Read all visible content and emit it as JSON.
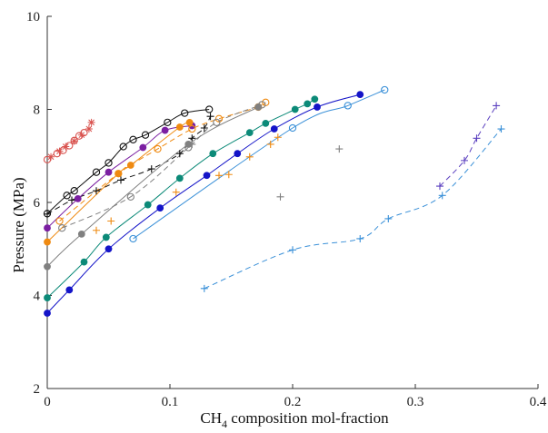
{
  "chart_data": {
    "type": "scatter",
    "title": "",
    "xlabel_main": "CH",
    "xlabel_sub": "4",
    "xlabel_rest": " composition mol-fraction",
    "ylabel": "Pressure (MPa)",
    "xlim": [
      0,
      0.4
    ],
    "ylim": [
      2,
      10
    ],
    "xticks": [
      0,
      0.1,
      0.2,
      0.3,
      0.4
    ],
    "xtick_labels": [
      "0",
      "0.1",
      "0.2",
      "0.3",
      "0.4"
    ],
    "yticks": [
      2,
      4,
      6,
      8,
      10
    ],
    "ytick_labels": [
      "2",
      "4",
      "6",
      "8",
      "10"
    ],
    "grid": false,
    "series": [
      {
        "color": "#d9534f",
        "marker": "open-circle",
        "points": [
          [
            0.0,
            6.92
          ],
          [
            0.008,
            7.05
          ],
          [
            0.013,
            7.12
          ],
          [
            0.018,
            7.22
          ],
          [
            0.022,
            7.33
          ],
          [
            0.026,
            7.43
          ],
          [
            0.03,
            7.5
          ]
        ]
      },
      {
        "color": "#d9534f",
        "marker": "star",
        "points": [
          [
            0.003,
            6.98
          ],
          [
            0.01,
            7.1
          ],
          [
            0.015,
            7.2
          ],
          [
            0.022,
            7.32
          ],
          [
            0.028,
            7.45
          ],
          [
            0.034,
            7.58
          ],
          [
            0.036,
            7.72
          ]
        ]
      },
      {
        "color": "#111111",
        "marker": "open-circle",
        "curve": "solid",
        "points": [
          [
            0.0,
            5.76
          ],
          [
            0.016,
            6.15
          ],
          [
            0.022,
            6.25
          ],
          [
            0.04,
            6.65
          ],
          [
            0.05,
            6.85
          ],
          [
            0.062,
            7.2
          ],
          [
            0.07,
            7.35
          ],
          [
            0.08,
            7.45
          ],
          [
            0.098,
            7.72
          ],
          [
            0.112,
            7.92
          ],
          [
            0.132,
            8.0
          ]
        ]
      },
      {
        "color": "#111111",
        "marker": "plus",
        "curve": "dashed",
        "points": [
          [
            0.0,
            5.75
          ],
          [
            0.02,
            6.05
          ],
          [
            0.04,
            6.25
          ],
          [
            0.06,
            6.48
          ],
          [
            0.085,
            6.72
          ],
          [
            0.108,
            7.05
          ],
          [
            0.118,
            7.38
          ],
          [
            0.128,
            7.6
          ],
          [
            0.133,
            7.85
          ]
        ]
      },
      {
        "color": "#7b1fa2",
        "marker": "filled-circle",
        "curve": "solid",
        "points": [
          [
            0.0,
            5.45
          ],
          [
            0.025,
            6.08
          ],
          [
            0.05,
            6.65
          ],
          [
            0.078,
            7.18
          ],
          [
            0.096,
            7.55
          ],
          [
            0.118,
            7.65
          ]
        ]
      },
      {
        "color": "#ef8a11",
        "marker": "filled-circle",
        "curve": "solid",
        "points": [
          [
            0.0,
            5.15
          ],
          [
            0.058,
            6.62
          ],
          [
            0.068,
            6.8
          ],
          [
            0.108,
            7.62
          ],
          [
            0.116,
            7.72
          ]
        ]
      },
      {
        "color": "#ef8a11",
        "marker": "open-circle",
        "curve": "dashed",
        "points": [
          [
            0.01,
            5.6
          ],
          [
            0.058,
            6.62
          ],
          [
            0.09,
            7.15
          ],
          [
            0.118,
            7.58
          ],
          [
            0.14,
            7.8
          ],
          [
            0.172,
            8.05
          ],
          [
            0.178,
            8.15
          ]
        ]
      },
      {
        "color": "#ef8a11",
        "marker": "plus",
        "points": [
          [
            0.04,
            5.4
          ],
          [
            0.052,
            5.6
          ],
          [
            0.105,
            6.22
          ],
          [
            0.14,
            6.58
          ],
          [
            0.148,
            6.6
          ],
          [
            0.165,
            6.98
          ],
          [
            0.182,
            7.25
          ],
          [
            0.188,
            7.4
          ]
        ]
      },
      {
        "color": "#808080",
        "marker": "filled-circle",
        "curve": "solid",
        "points": [
          [
            0.0,
            4.62
          ],
          [
            0.028,
            5.32
          ],
          [
            0.115,
            7.25
          ],
          [
            0.172,
            8.05
          ]
        ]
      },
      {
        "color": "#808080",
        "marker": "open-circle",
        "curve": "dashed",
        "points": [
          [
            0.012,
            5.45
          ],
          [
            0.068,
            6.12
          ],
          [
            0.115,
            7.18
          ],
          [
            0.138,
            7.72
          ],
          [
            0.175,
            8.1
          ]
        ]
      },
      {
        "color": "#808080",
        "marker": "plus",
        "points": [
          [
            0.118,
            7.25
          ],
          [
            0.19,
            6.12
          ],
          [
            0.238,
            7.15
          ]
        ]
      },
      {
        "color": "#0c8a78",
        "marker": "filled-circle",
        "curve": "solid",
        "points": [
          [
            0.0,
            3.95
          ],
          [
            0.03,
            4.72
          ],
          [
            0.048,
            5.25
          ],
          [
            0.082,
            5.95
          ],
          [
            0.108,
            6.52
          ],
          [
            0.135,
            7.05
          ],
          [
            0.165,
            7.5
          ],
          [
            0.178,
            7.7
          ],
          [
            0.202,
            8.0
          ],
          [
            0.212,
            8.12
          ],
          [
            0.218,
            8.22
          ]
        ]
      },
      {
        "color": "#1414c8",
        "marker": "filled-circle",
        "curve": "solid",
        "points": [
          [
            0.0,
            3.62
          ],
          [
            0.018,
            4.12
          ],
          [
            0.05,
            5.0
          ],
          [
            0.092,
            5.88
          ],
          [
            0.13,
            6.58
          ],
          [
            0.155,
            7.05
          ],
          [
            0.185,
            7.58
          ],
          [
            0.22,
            8.05
          ],
          [
            0.255,
            8.32
          ]
        ]
      },
      {
        "color": "#3a90d8",
        "marker": "open-circle",
        "curve": "solid",
        "points": [
          [
            0.07,
            5.22
          ],
          [
            0.2,
            7.6
          ],
          [
            0.245,
            8.08
          ],
          [
            0.275,
            8.42
          ]
        ]
      },
      {
        "color": "#5a3fbf",
        "marker": "plus",
        "curve": "dashed",
        "points": [
          [
            0.32,
            6.35
          ],
          [
            0.34,
            6.9
          ],
          [
            0.35,
            7.38
          ],
          [
            0.366,
            8.08
          ]
        ]
      },
      {
        "color": "#3a90d8",
        "marker": "plus",
        "curve": "dashed",
        "points": [
          [
            0.128,
            4.15
          ],
          [
            0.2,
            4.98
          ],
          [
            0.255,
            5.22
          ],
          [
            0.278,
            5.65
          ],
          [
            0.322,
            6.15
          ],
          [
            0.37,
            7.58
          ]
        ]
      }
    ]
  }
}
